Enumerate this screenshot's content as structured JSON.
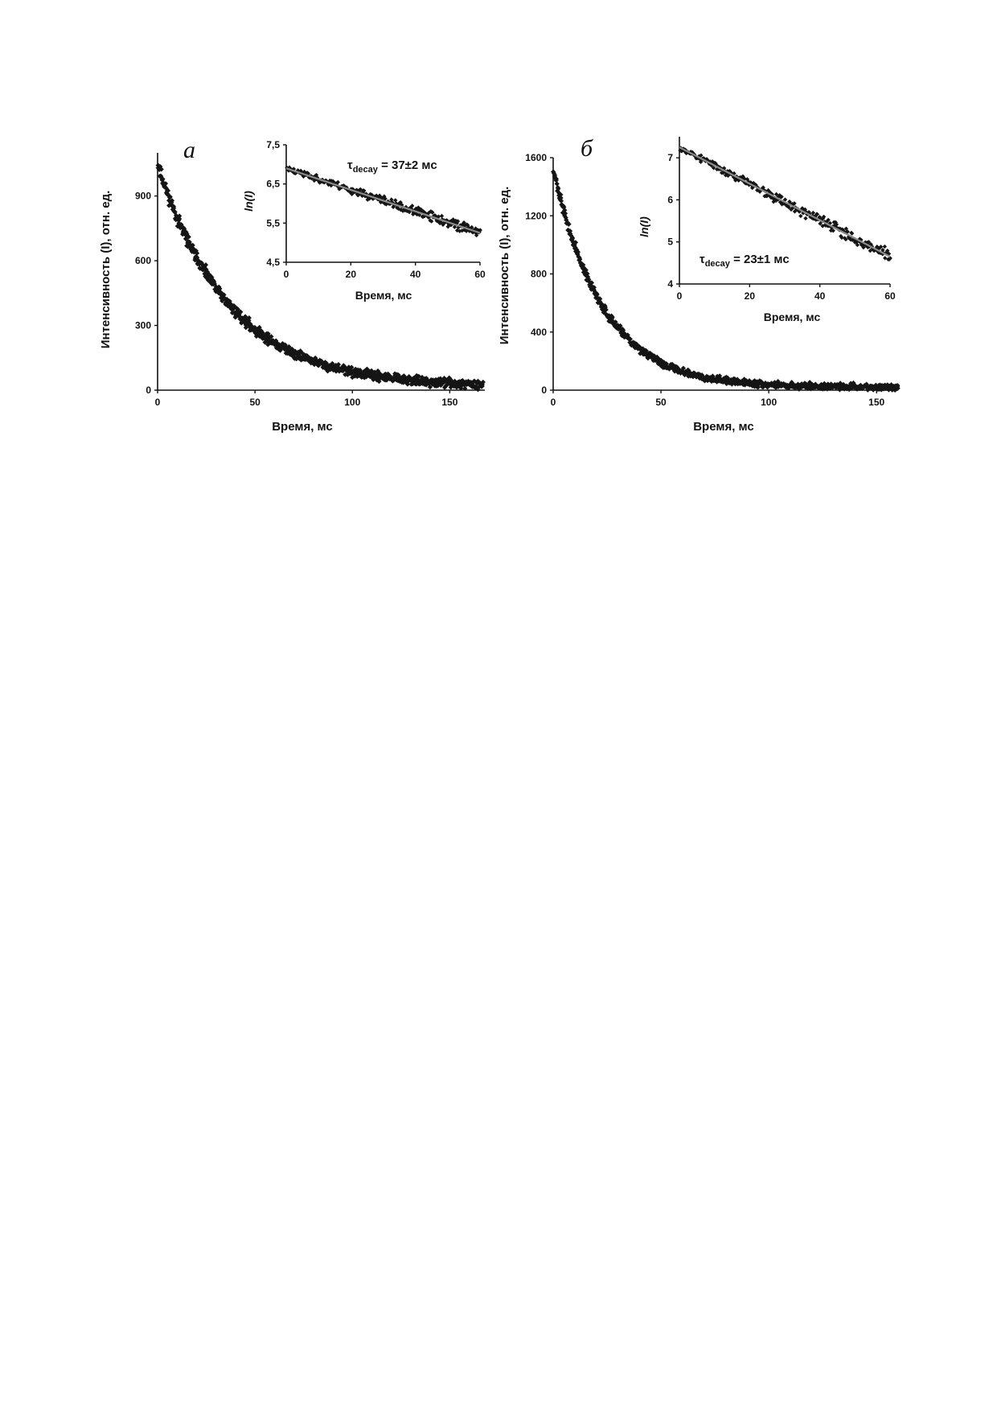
{
  "chart_data": [
    {
      "id": "a",
      "panel_label": "а",
      "type": "scatter",
      "xlabel": "Время, мс",
      "ylabel": "Интенсивность (I), отн. ед.",
      "xlim": [
        0,
        168
      ],
      "ylim": [
        0,
        1100
      ],
      "xticks": [
        0,
        50,
        100,
        150
      ],
      "yticks": [
        0,
        300,
        600,
        900
      ],
      "series": [
        {
          "model": "exponential_decay",
          "amplitude": 1030,
          "tau_ms": 37,
          "offset": 15,
          "t_start": 0,
          "t_end": 167,
          "point_count": 840,
          "scatter": 35
        }
      ],
      "inset": {
        "type": "scatter",
        "xlabel": "Время, мс",
        "ylabel": "ln(I)",
        "xlim": [
          0,
          60
        ],
        "ylim": [
          4.5,
          7.5
        ],
        "xticks": [
          0,
          20,
          40,
          60
        ],
        "yticks": [
          4.5,
          5.5,
          6.5,
          7.5
        ],
        "ytick_labels": [
          "4,5",
          "5,5",
          "6,5",
          "7,5"
        ],
        "fit_line": {
          "x": [
            0,
            60
          ],
          "y": [
            6.9,
            5.25
          ]
        },
        "point_count": 300,
        "scatter": 0.08,
        "annotation_tau": "τ",
        "annotation_sub": "decay",
        "annotation_value": " = 37±2 мс"
      }
    },
    {
      "id": "b",
      "panel_label": "б",
      "type": "scatter",
      "xlabel": "Время, мс",
      "ylabel": "Интенсивность (I), отн. ед.",
      "xlim": [
        0,
        160
      ],
      "ylim": [
        0,
        1600
      ],
      "xticks": [
        0,
        50,
        100,
        150
      ],
      "yticks": [
        0,
        400,
        800,
        1200,
        1600
      ],
      "series": [
        {
          "model": "exponential_decay",
          "amplitude": 1500,
          "tau_ms": 23,
          "offset": 20,
          "t_start": 0,
          "t_end": 160,
          "point_count": 800,
          "scatter": 40
        }
      ],
      "inset": {
        "type": "scatter",
        "xlabel": "Время, мс",
        "ylabel": "ln(I)",
        "xlim": [
          0,
          60
        ],
        "ylim": [
          4,
          7.5
        ],
        "xticks": [
          0,
          20,
          40,
          60
        ],
        "yticks": [
          4,
          5,
          6,
          7
        ],
        "ytick_labels": [
          "4",
          "5",
          "6",
          "7"
        ],
        "fit_line": {
          "x": [
            0,
            60
          ],
          "y": [
            7.25,
            4.65
          ]
        },
        "point_count": 300,
        "scatter": 0.09,
        "annotation_tau": "τ",
        "annotation_sub": "decay",
        "annotation_value": " = 23±1 мс"
      }
    }
  ]
}
